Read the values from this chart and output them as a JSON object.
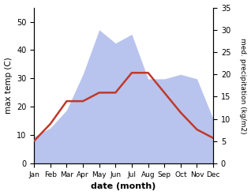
{
  "months": [
    "Jan",
    "Feb",
    "Mar",
    "Apr",
    "May",
    "Jun",
    "Jul",
    "Aug",
    "Sep",
    "Oct",
    "Nov",
    "Dec"
  ],
  "temperature": [
    8,
    14,
    22,
    22,
    25,
    25,
    32,
    32,
    25,
    18,
    12,
    9
  ],
  "precipitation": [
    6,
    8,
    12,
    20,
    30,
    27,
    29,
    19,
    19,
    20,
    19,
    10
  ],
  "temp_color": "#c0392b",
  "precip_fill_color": "#b8c4ee",
  "temp_ylim": [
    0,
    55
  ],
  "precip_ylim": [
    0,
    35
  ],
  "temp_yticks": [
    0,
    10,
    20,
    30,
    40,
    50
  ],
  "precip_yticks": [
    0,
    5,
    10,
    15,
    20,
    25,
    30,
    35
  ],
  "xlabel": "date (month)",
  "ylabel_left": "max temp (C)",
  "ylabel_right": "med. precipitation (kg/m2)",
  "bg_color": "#ffffff",
  "line_width": 1.8
}
